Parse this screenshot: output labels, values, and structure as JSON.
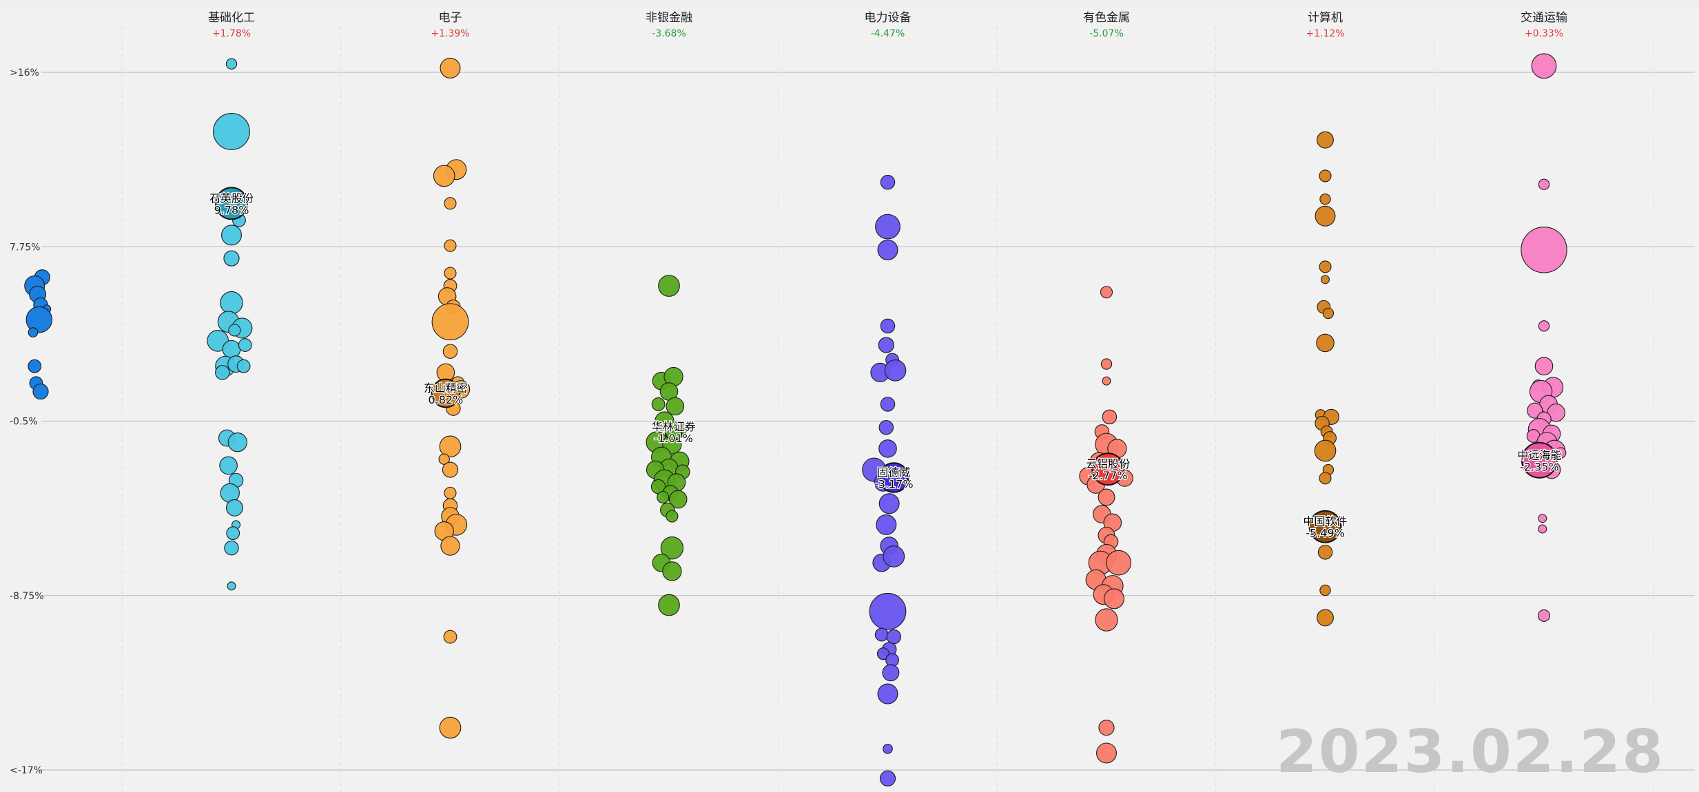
{
  "date": "2023.02.28",
  "chart_data": {
    "type": "scatter",
    "y_ticks": [
      ">16%",
      "7.75%",
      "-0.5%",
      "-8.75%",
      "<-17%"
    ],
    "y_tick_values": [
      16,
      7.75,
      -0.5,
      -8.75,
      -17
    ],
    "ylim": [
      -17,
      16
    ],
    "grid": true,
    "sectors": [
      {
        "name": "基础化工",
        "change": "+1.78%",
        "color": "#48c6e0",
        "change_color": "#e03a3a",
        "highlight": {
          "name": "石英股份",
          "value_label": "9.78%",
          "y": 9.8,
          "dx": 0,
          "size": 1.35,
          "color": "#2a9ab5"
        },
        "points": [
          [
            0,
            16.4,
            0.45
          ],
          [
            0,
            13.2,
            1.55
          ],
          [
            0.5,
            9.0,
            0.55
          ],
          [
            0,
            8.3,
            0.85
          ],
          [
            0,
            7.2,
            0.65
          ],
          [
            0,
            5.1,
            0.95
          ],
          [
            -0.2,
            4.2,
            0.9
          ],
          [
            0.7,
            3.9,
            0.85
          ],
          [
            -0.9,
            3.3,
            0.9
          ],
          [
            0.2,
            3.8,
            0.5
          ],
          [
            0,
            2.9,
            0.75
          ],
          [
            0.9,
            3.1,
            0.55
          ],
          [
            -0.4,
            2.1,
            0.85
          ],
          [
            0.3,
            2.2,
            0.7
          ],
          [
            -0.6,
            1.8,
            0.6
          ],
          [
            0.8,
            2.1,
            0.55
          ],
          [
            -0.3,
            -1.3,
            0.7
          ],
          [
            0.4,
            -1.5,
            0.8
          ],
          [
            -0.2,
            -2.6,
            0.75
          ],
          [
            0.3,
            -3.3,
            0.6
          ],
          [
            -0.1,
            -3.9,
            0.8
          ],
          [
            0.2,
            -4.6,
            0.7
          ],
          [
            0.3,
            -5.4,
            0.35
          ],
          [
            0.1,
            -5.8,
            0.55
          ],
          [
            0,
            -6.5,
            0.6
          ],
          [
            0,
            -8.3,
            0.35
          ]
        ]
      },
      {
        "name": "电子",
        "change": "+1.39%",
        "color": "#f7a13a",
        "change_color": "#e03a3a",
        "highlight": {
          "name": "东山精密",
          "value_label": "0.82%",
          "y": 0.82,
          "dx": -0.3,
          "size": 1.2,
          "color": "#c67a1e"
        },
        "points": [
          [
            0,
            16.2,
            0.85
          ],
          [
            0.4,
            11.4,
            0.85
          ],
          [
            -0.4,
            11.1,
            0.9
          ],
          [
            0,
            9.8,
            0.5
          ],
          [
            0,
            7.8,
            0.5
          ],
          [
            0,
            6.5,
            0.5
          ],
          [
            0,
            5.9,
            0.55
          ],
          [
            -0.2,
            5.4,
            0.75
          ],
          [
            0.2,
            4.9,
            0.6
          ],
          [
            0,
            4.2,
            1.55
          ],
          [
            0,
            2.8,
            0.6
          ],
          [
            -0.3,
            1.8,
            0.75
          ],
          [
            0.5,
            1.3,
            0.55
          ],
          [
            0.7,
            1.0,
            0.75
          ],
          [
            0.2,
            0.1,
            0.6
          ],
          [
            0,
            -1.7,
            0.9
          ],
          [
            -0.4,
            -2.3,
            0.45
          ],
          [
            0,
            -2.8,
            0.65
          ],
          [
            0,
            -3.9,
            0.5
          ],
          [
            0,
            -4.5,
            0.6
          ],
          [
            0,
            -5.0,
            0.75
          ],
          [
            0.4,
            -5.4,
            0.9
          ],
          [
            -0.4,
            -5.7,
            0.8
          ],
          [
            0,
            -6.4,
            0.8
          ],
          [
            0,
            -10.7,
            0.55
          ],
          [
            0,
            -15.0,
            0.9
          ]
        ]
      },
      {
        "name": "非银金融",
        "change": "-3.68%",
        "color": "#57a81c",
        "change_color": "#2a9a3a",
        "highlight": {
          "name": "华林证券",
          "value_label": "-1.01%",
          "y": -1.01,
          "dx": 0.3,
          "size": 0.7,
          "color": "#57a81c"
        },
        "points": [
          [
            0,
            5.9,
            0.9
          ],
          [
            -0.5,
            1.4,
            0.75
          ],
          [
            0.3,
            1.6,
            0.8
          ],
          [
            0,
            0.9,
            0.75
          ],
          [
            -0.7,
            0.3,
            0.55
          ],
          [
            0.4,
            0.2,
            0.75
          ],
          [
            -0.3,
            -0.5,
            0.8
          ],
          [
            0.6,
            -0.9,
            0.7
          ],
          [
            -0.8,
            -1.5,
            0.9
          ],
          [
            0.2,
            -1.6,
            0.8
          ],
          [
            -0.5,
            -2.2,
            0.85
          ],
          [
            0.7,
            -2.4,
            0.8
          ],
          [
            0,
            -2.7,
            0.75
          ],
          [
            -0.9,
            -2.8,
            0.75
          ],
          [
            0.9,
            -2.9,
            0.6
          ],
          [
            -0.3,
            -3.3,
            0.9
          ],
          [
            0.5,
            -3.4,
            0.75
          ],
          [
            -0.7,
            -3.6,
            0.6
          ],
          [
            0.1,
            -3.9,
            0.65
          ],
          [
            -0.4,
            -4.1,
            0.5
          ],
          [
            0.6,
            -4.2,
            0.75
          ],
          [
            -0.1,
            -4.7,
            0.6
          ],
          [
            0.2,
            -5.0,
            0.5
          ],
          [
            0.2,
            -6.5,
            0.95
          ],
          [
            -0.5,
            -7.2,
            0.75
          ],
          [
            0.2,
            -7.6,
            0.8
          ],
          [
            0,
            -9.2,
            0.9
          ]
        ]
      },
      {
        "name": "电力设备",
        "change": "-4.47%",
        "color": "#6654ee",
        "change_color": "#2a9a3a",
        "highlight": {
          "name": "固德威",
          "value_label": "-3.17%",
          "y": -3.17,
          "dx": 0.4,
          "size": 1.25,
          "color": "#3f2ed0"
        },
        "points": [
          [
            0,
            10.8,
            0.6
          ],
          [
            0,
            8.7,
            1.05
          ],
          [
            0,
            7.6,
            0.85
          ],
          [
            0,
            4.0,
            0.6
          ],
          [
            -0.1,
            3.1,
            0.65
          ],
          [
            0.3,
            2.4,
            0.55
          ],
          [
            -0.5,
            1.8,
            0.8
          ],
          [
            0.5,
            1.9,
            0.9
          ],
          [
            0,
            0.3,
            0.6
          ],
          [
            -0.1,
            -0.8,
            0.6
          ],
          [
            0,
            -1.8,
            0.75
          ],
          [
            -0.9,
            -2.8,
            1.0
          ],
          [
            -0.3,
            -3.4,
            0.75
          ],
          [
            0.1,
            -4.4,
            0.85
          ],
          [
            -0.1,
            -5.4,
            0.85
          ],
          [
            0.1,
            -6.4,
            0.75
          ],
          [
            -0.4,
            -7.2,
            0.75
          ],
          [
            0.4,
            -6.9,
            0.9
          ],
          [
            0,
            -9.5,
            1.55
          ],
          [
            -0.4,
            -10.6,
            0.55
          ],
          [
            0.4,
            -10.7,
            0.6
          ],
          [
            0.1,
            -11.3,
            0.6
          ],
          [
            -0.3,
            -11.5,
            0.5
          ],
          [
            0.3,
            -11.8,
            0.55
          ],
          [
            0.2,
            -12.4,
            0.7
          ],
          [
            0,
            -13.4,
            0.85
          ],
          [
            0,
            -16.0,
            0.4
          ],
          [
            0,
            -17.4,
            0.65
          ]
        ]
      },
      {
        "name": "有色金属",
        "change": "-5.07%",
        "color": "#f87a6a",
        "change_color": "#2a9a3a",
        "highlight": {
          "name": "云铝股份",
          "value_label": "-2.77%",
          "y": -2.77,
          "dx": 0.1,
          "size": 1.35,
          "color": "#e83a3a"
        },
        "points": [
          [
            0,
            5.6,
            0.5
          ],
          [
            0,
            2.2,
            0.45
          ],
          [
            0,
            1.4,
            0.35
          ],
          [
            0.2,
            -0.3,
            0.6
          ],
          [
            -0.3,
            -1.0,
            0.6
          ],
          [
            0,
            -1.6,
            0.95
          ],
          [
            0.7,
            -1.8,
            0.8
          ],
          [
            -0.5,
            -2.4,
            0.75
          ],
          [
            -1.2,
            -3.1,
            0.75
          ],
          [
            1.2,
            -3.2,
            0.7
          ],
          [
            -0.7,
            -3.5,
            0.75
          ],
          [
            0,
            -4.1,
            0.7
          ],
          [
            -0.3,
            -4.9,
            0.75
          ],
          [
            0.4,
            -5.3,
            0.75
          ],
          [
            0,
            -5.9,
            0.7
          ],
          [
            0.3,
            -6.2,
            0.6
          ],
          [
            0,
            -6.8,
            0.85
          ],
          [
            -0.4,
            -7.2,
            1.0
          ],
          [
            0.8,
            -7.2,
            1.05
          ],
          [
            -0.7,
            -8.0,
            0.85
          ],
          [
            0.4,
            -8.3,
            0.9
          ],
          [
            -0.2,
            -8.7,
            0.85
          ],
          [
            0.5,
            -8.9,
            0.85
          ],
          [
            0,
            -9.9,
            0.95
          ],
          [
            0,
            -15.0,
            0.65
          ],
          [
            0,
            -16.2,
            0.85
          ]
        ]
      },
      {
        "name": "计算机",
        "change": "+1.12%",
        "color": "#d68019",
        "change_color": "#e03a3a",
        "highlight": {
          "name": "中国软件",
          "value_label": "-5.49%",
          "y": -5.49,
          "dx": 0,
          "size": 1.35,
          "color": "#8c520e"
        },
        "points": [
          [
            0,
            12.8,
            0.7
          ],
          [
            0,
            11.1,
            0.5
          ],
          [
            0,
            10.0,
            0.45
          ],
          [
            0,
            9.2,
            0.85
          ],
          [
            0,
            6.8,
            0.5
          ],
          [
            0,
            6.2,
            0.35
          ],
          [
            -0.1,
            4.9,
            0.55
          ],
          [
            0.2,
            4.6,
            0.45
          ],
          [
            0,
            3.2,
            0.75
          ],
          [
            -0.3,
            -0.2,
            0.45
          ],
          [
            0.4,
            -0.3,
            0.65
          ],
          [
            -0.2,
            -0.6,
            0.6
          ],
          [
            0.1,
            -1.0,
            0.5
          ],
          [
            0.3,
            -1.3,
            0.55
          ],
          [
            0,
            -1.9,
            0.9
          ],
          [
            0.2,
            -2.8,
            0.45
          ],
          [
            0,
            -3.2,
            0.5
          ],
          [
            0,
            -6.7,
            0.6
          ],
          [
            0,
            -8.5,
            0.45
          ],
          [
            0,
            -9.8,
            0.7
          ]
        ]
      },
      {
        "name": "交通运输",
        "change": "+0.33%",
        "color": "#f77ec3",
        "change_color": "#e03a3a",
        "highlight": {
          "name": "中远海能",
          "value_label": "-2.35%",
          "y": -2.35,
          "dx": -0.3,
          "size": 1.5,
          "color": "#e8539e"
        },
        "points": [
          [
            0,
            16.3,
            1.05
          ],
          [
            0,
            10.7,
            0.45
          ],
          [
            0,
            7.6,
            1.95
          ],
          [
            0,
            4.0,
            0.45
          ],
          [
            0,
            2.1,
            0.75
          ],
          [
            -0.4,
            1.2,
            0.45
          ],
          [
            0.6,
            1.1,
            0.85
          ],
          [
            -0.2,
            0.9,
            0.95
          ],
          [
            0.3,
            0.3,
            0.75
          ],
          [
            -0.6,
            0.0,
            0.65
          ],
          [
            0.8,
            -0.1,
            0.75
          ],
          [
            0,
            -0.4,
            0.6
          ],
          [
            -0.3,
            -0.9,
            0.95
          ],
          [
            0.5,
            -1.1,
            0.75
          ],
          [
            -0.7,
            -1.2,
            0.55
          ],
          [
            0.2,
            -1.5,
            0.85
          ],
          [
            -0.3,
            -2.0,
            0.75
          ],
          [
            0.7,
            -1.9,
            0.9
          ],
          [
            1.1,
            -2.0,
            0.45
          ],
          [
            0.5,
            -2.8,
            0.75
          ],
          [
            -0.1,
            -5.1,
            0.35
          ],
          [
            -0.1,
            -5.6,
            0.35
          ],
          [
            0,
            -9.7,
            0.5
          ]
        ]
      }
    ],
    "offscreen_cluster": {
      "color": "#1a7fe0",
      "points": [
        [
          0.6,
          6.3,
          0.65
        ],
        [
          0.1,
          5.9,
          0.85
        ],
        [
          0.3,
          5.5,
          0.7
        ],
        [
          0.5,
          5.0,
          0.6
        ],
        [
          0.9,
          4.8,
          0.35
        ],
        [
          0.4,
          4.3,
          1.1
        ],
        [
          0,
          3.7,
          0.4
        ],
        [
          0.1,
          2.1,
          0.55
        ],
        [
          0.2,
          1.3,
          0.55
        ],
        [
          0.5,
          0.9,
          0.65
        ]
      ]
    }
  }
}
